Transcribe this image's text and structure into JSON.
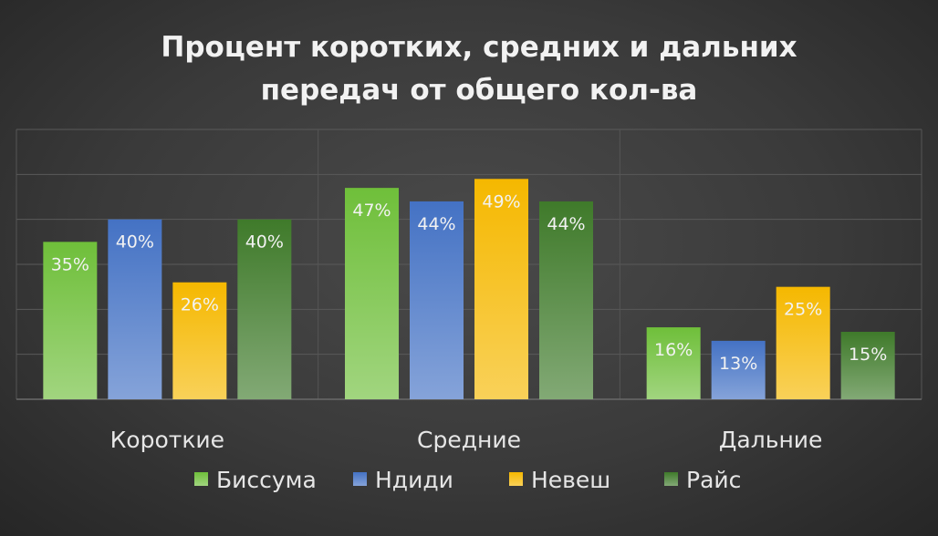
{
  "chart_data": {
    "type": "bar",
    "title": "Процент коротких, средних и дальних передач от общего кол-ва",
    "title_lines": [
      "Процент коротких, средних и дальних",
      "передач от общего кол-ва"
    ],
    "categories": [
      "Короткие",
      "Средние",
      "Дальние"
    ],
    "series": [
      {
        "name": "Биссума",
        "values": [
          35,
          47,
          16
        ],
        "labels": [
          "35%",
          "47%",
          "16%"
        ],
        "color": "#6fbf3a"
      },
      {
        "name": "Ндиди",
        "values": [
          40,
          44,
          13
        ],
        "labels": [
          "40%",
          "44%",
          "13%"
        ],
        "color": "#4472c4"
      },
      {
        "name": "Невеш",
        "values": [
          26,
          49,
          25
        ],
        "labels": [
          "26%",
          "49%",
          "25%"
        ],
        "color": "#f5b800"
      },
      {
        "name": "Райс",
        "values": [
          40,
          44,
          15
        ],
        "labels": [
          "40%",
          "44%",
          "15%"
        ],
        "color": "#3f7a2a"
      }
    ],
    "ylim": [
      0,
      60
    ],
    "grid": true,
    "legend_position": "bottom",
    "value_format": "percent"
  }
}
